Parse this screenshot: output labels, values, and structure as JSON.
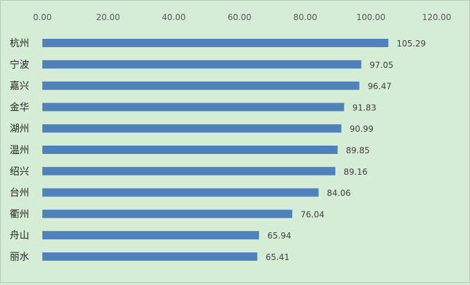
{
  "chart_data": {
    "type": "bar",
    "orientation": "horizontal",
    "title": "",
    "xlabel": "",
    "ylabel": "",
    "xlim": [
      0,
      120
    ],
    "ticks": [
      "0.00",
      "20.00",
      "40.00",
      "60.00",
      "80.00",
      "100.00",
      "120.00"
    ],
    "tick_values": [
      0,
      20,
      40,
      60,
      80,
      100,
      120
    ],
    "axis_position": "top",
    "grid": false,
    "legend": "none",
    "categories": [
      "杭州",
      "宁波",
      "嘉兴",
      "金华",
      "湖州",
      "温州",
      "绍兴",
      "台州",
      "衢州",
      "舟山",
      "丽水"
    ],
    "values": [
      105.29,
      97.05,
      96.47,
      91.83,
      90.99,
      89.85,
      89.16,
      84.06,
      76.04,
      65.94,
      65.41
    ],
    "value_labels": [
      "105.29",
      "97.05",
      "96.47",
      "91.83",
      "90.99",
      "89.85",
      "89.16",
      "84.06",
      "76.04",
      "65.94",
      "65.41"
    ],
    "colors": {
      "bar": "#4f81bd",
      "background": "#d5ecd5"
    }
  }
}
